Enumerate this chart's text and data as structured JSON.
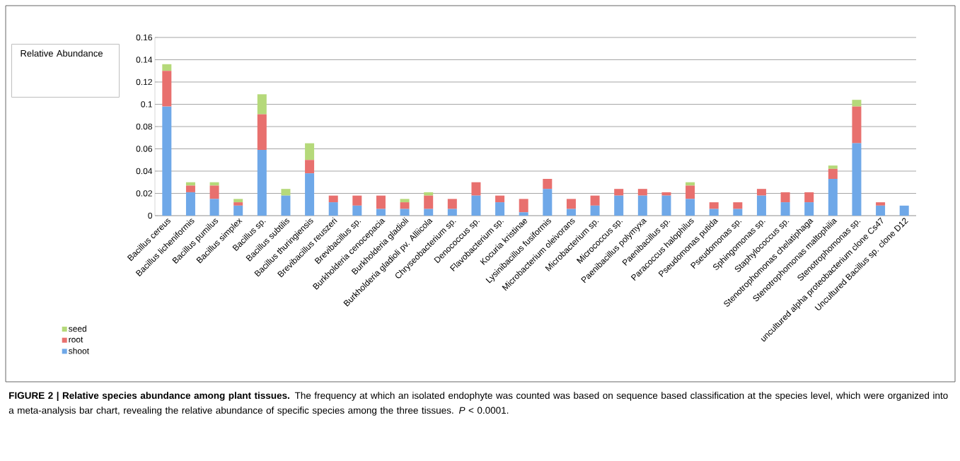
{
  "chart_data": {
    "type": "bar",
    "stacked": true,
    "ylabel": "Relative Abundance",
    "categories": [
      "Bacillus cereus",
      "Bacillus licheniformis",
      "Bacillus pumilus",
      "Bacillus simplex",
      "Bacillus sp.",
      "Bacillus subtilis",
      "Bacillus thuringiensis",
      "Brevibacillus reuszeri",
      "Brevibacillus sp.",
      "Burkholderia cenocepacia",
      "Burkholderia gladioli",
      "Burkholderia gladioli pv. Alliicola",
      "Chryseobacterium sp.",
      "Denococcus sp.",
      "Flavobacterium sp.",
      "Kocuria kristinae",
      "Lysinibacillus fusiformis",
      "Microbacterium oleivorans",
      "Microbacterium sp.",
      "Micrococcus sp.",
      "Paenibacillus polymyxa",
      "Paenibacillus sp.",
      "Paracoccus halophilus",
      "Pseudomonas putida",
      "Pseudomonas sp.",
      "Sphingomonas sp.",
      "Staphylococcus sp.",
      "Stenotrophomonas chelatiphaga",
      "Stenotrophomonas maltophilia",
      "Stenotrophomonas sp.",
      "uncultured alpha proteobacterium clone Cs47",
      "Uncultured Bacillus sp. clone D12"
    ],
    "series": [
      {
        "name": "shoot",
        "color": "#6fa8e8",
        "values": [
          0.098,
          0.021,
          0.015,
          0.009,
          0.059,
          0.018,
          0.038,
          0.012,
          0.009,
          0.006,
          0.006,
          0.006,
          0.006,
          0.018,
          0.012,
          0.003,
          0.024,
          0.006,
          0.009,
          0.018,
          0.018,
          0.018,
          0.015,
          0.006,
          0.006,
          0.018,
          0.012,
          0.012,
          0.033,
          0.065,
          0.009,
          0.009
        ]
      },
      {
        "name": "root",
        "color": "#e8706e",
        "values": [
          0.032,
          0.006,
          0.012,
          0.003,
          0.032,
          null,
          0.012,
          0.006,
          0.009,
          0.012,
          0.006,
          0.012,
          0.009,
          0.012,
          0.006,
          0.012,
          0.009,
          0.009,
          0.009,
          0.006,
          0.006,
          0.003,
          0.012,
          0.006,
          0.006,
          0.006,
          0.009,
          0.009,
          0.009,
          0.033,
          0.003,
          null
        ]
      },
      {
        "name": "seed",
        "color": "#b5d97a",
        "values": [
          0.006,
          0.003,
          0.003,
          0.003,
          0.018,
          0.006,
          0.015,
          null,
          null,
          null,
          0.003,
          0.003,
          null,
          null,
          null,
          null,
          null,
          null,
          null,
          null,
          null,
          null,
          0.003,
          null,
          null,
          null,
          null,
          null,
          0.003,
          0.006,
          null,
          null
        ]
      }
    ],
    "ylim": [
      0,
      0.16
    ],
    "yticks": [
      0,
      0.02,
      0.04,
      0.06,
      0.08,
      0.1,
      0.12,
      0.14,
      0.16
    ],
    "grid": "y",
    "legend": "bottom left",
    "annotations": [
      "**FIGURE 2 | Relative species abundance among plant tissues.** The frequency at which an isolated endophyte was counted was based on sequence based classification at the species level, which were organized into a meta-analysis bar chart, revealing the relative abundance of specific species among the three tissues. *P* < 0.0001."
    ]
  }
}
